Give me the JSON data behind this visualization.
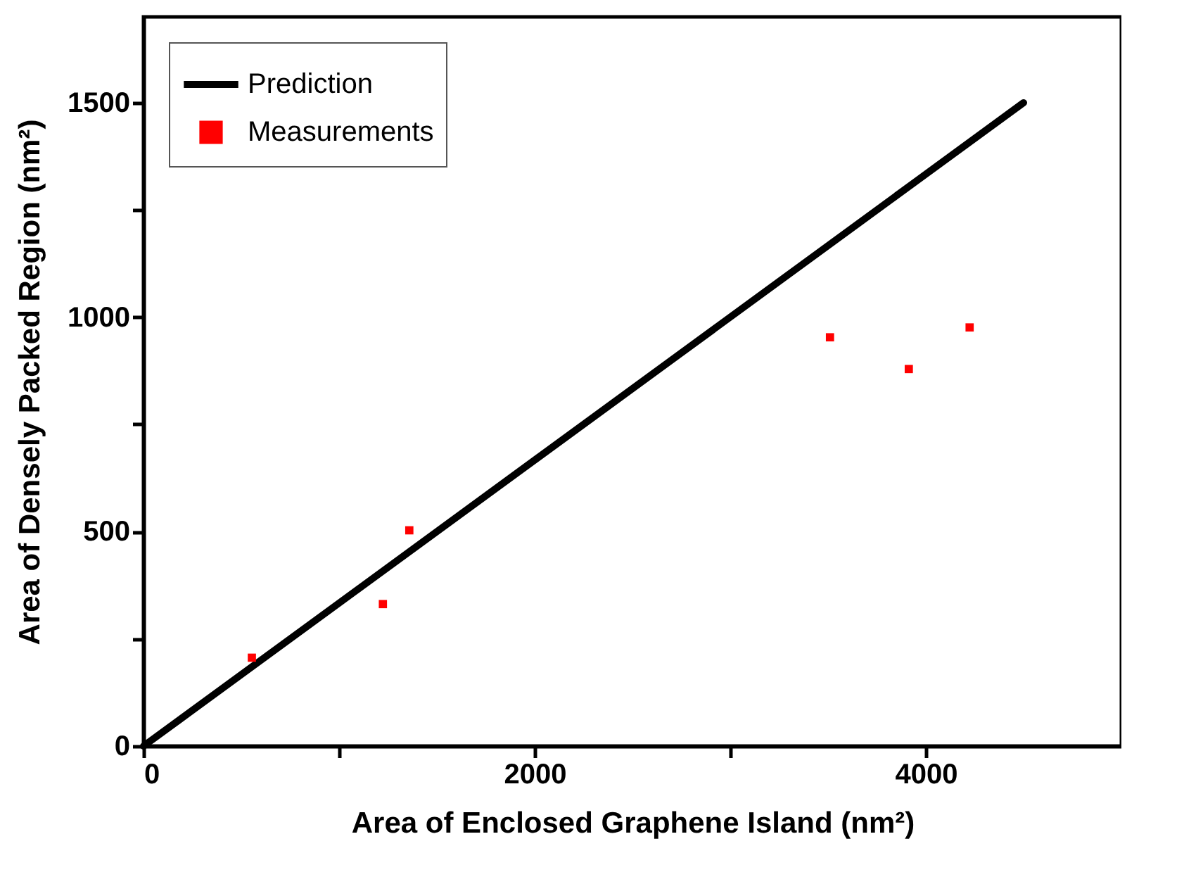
{
  "chart_data": {
    "type": "scatter",
    "xlabel": "Area of Enclosed Graphene Island (nm²)",
    "ylabel": "Area of Densely Packed Region (nm²)",
    "series": [
      {
        "name": "Prediction",
        "type": "line",
        "color": "#000000",
        "marker": "none",
        "line_style": "solid",
        "x": [
          0,
          4500
        ],
        "values": [
          0,
          1500
        ]
      },
      {
        "name": "Measurements",
        "color": "#ff0000",
        "marker": "square",
        "x": [
          554,
          1224,
          1359,
          3510,
          3913,
          4224
        ],
        "values": [
          206,
          331,
          503,
          953,
          879,
          976
        ]
      }
    ],
    "xlim": [
      0,
      5000
    ],
    "ylim": [
      0,
      1700
    ],
    "xticks": [
      0,
      {
        "value": 1000,
        "label": null
      },
      2000,
      {
        "value": 3000,
        "label": null
      },
      4000
    ],
    "yticks": [
      0,
      {
        "value": 250,
        "label": null
      },
      500,
      {
        "value": 750,
        "label": null
      },
      1000,
      {
        "value": 1250,
        "label": null
      },
      1500
    ],
    "grid": false,
    "legend": "top left"
  }
}
